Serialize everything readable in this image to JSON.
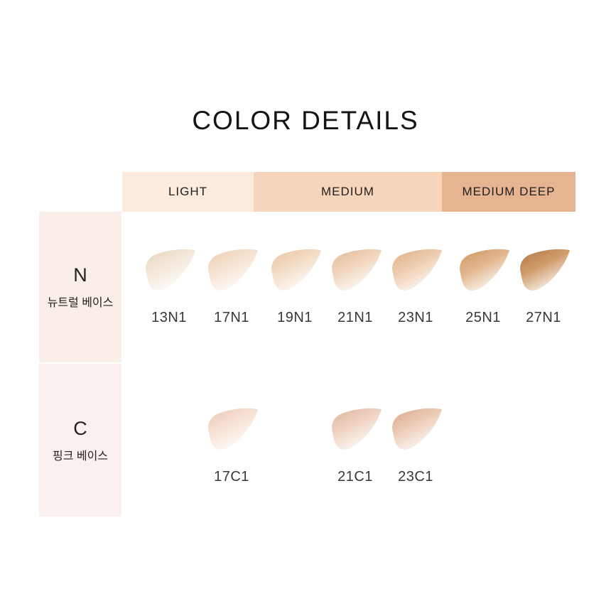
{
  "title": "COLOR DETAILS",
  "bands": [
    {
      "label": "LIGHT",
      "bg": "#fceadd"
    },
    {
      "label": "MEDIUM",
      "bg": "#f6d5ba"
    },
    {
      "label": "MEDIUM DEEP",
      "bg": "#e6b490"
    }
  ],
  "rows": [
    {
      "id": "N",
      "letter": "N",
      "subtitle": "뉴트럴 베이스",
      "bg": "#f9efe8",
      "swatches": [
        {
          "label": "13N1",
          "col": 0,
          "color": "#f3e8da",
          "edge": "#e9d7c2"
        },
        {
          "label": "17N1",
          "col": 1,
          "color": "#f6e3d1",
          "edge": "#ecd2b8"
        },
        {
          "label": "19N1",
          "col": 2,
          "color": "#f4dcc6",
          "edge": "#e9c8a8"
        },
        {
          "label": "21N1",
          "col": 3,
          "color": "#f1d5bc",
          "edge": "#e4bf9d"
        },
        {
          "label": "23N1",
          "col": 4,
          "color": "#eeccae",
          "edge": "#dfb58c"
        },
        {
          "label": "25N1",
          "col": 5,
          "color": "#e2b58c",
          "edge": "#cf9d6a"
        },
        {
          "label": "27N1",
          "col": 6,
          "color": "#d09b6a",
          "edge": "#b67f4c"
        }
      ]
    },
    {
      "id": "C",
      "letter": "C",
      "subtitle": "핑크 베이스",
      "bg": "#faf1ee",
      "swatches": [
        {
          "label": "17C1",
          "col": 1,
          "color": "#f6e1d4",
          "edge": "#ecccbb"
        },
        {
          "label": "21C1",
          "col": 3,
          "color": "#efd2c1",
          "edge": "#e1b8a2"
        },
        {
          "label": "23C1",
          "col": 4,
          "color": "#eccbb6",
          "edge": "#dcae92"
        }
      ]
    }
  ],
  "chart_data": {
    "type": "table",
    "title": "COLOR DETAILS",
    "column_groups": [
      "LIGHT",
      "MEDIUM",
      "MEDIUM DEEP"
    ],
    "group_columns": {
      "LIGHT": [
        0,
        1
      ],
      "MEDIUM": [
        2,
        3,
        4
      ],
      "MEDIUM DEEP": [
        5,
        6
      ]
    },
    "row_labels": [
      "N (뉴트럴 베이스)",
      "C (핑크 베이스)"
    ],
    "cells": {
      "N": [
        "13N1",
        "17N1",
        "19N1",
        "21N1",
        "23N1",
        "25N1",
        "27N1"
      ],
      "C": [
        null,
        "17C1",
        null,
        "21C1",
        "23C1",
        null,
        null
      ]
    },
    "swatch_colors": {
      "13N1": "#f3e8da",
      "17N1": "#f6e3d1",
      "19N1": "#f4dcc6",
      "21N1": "#f1d5bc",
      "23N1": "#eeccae",
      "25N1": "#e2b58c",
      "27N1": "#d09b6a",
      "17C1": "#f6e1d4",
      "21C1": "#efd2c1",
      "23C1": "#eccbb6"
    }
  }
}
